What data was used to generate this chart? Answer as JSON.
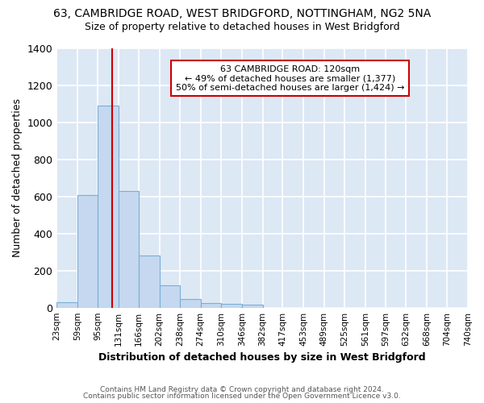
{
  "title1": "63, CAMBRIDGE ROAD, WEST BRIDGFORD, NOTTINGHAM, NG2 5NA",
  "title2": "Size of property relative to detached houses in West Bridgford",
  "xlabel": "Distribution of detached houses by size in West Bridgford",
  "ylabel": "Number of detached properties",
  "footnote1": "Contains HM Land Registry data © Crown copyright and database right 2024.",
  "footnote2": "Contains public sector information licensed under the Open Government Licence v3.0.",
  "bin_edges": [
    23,
    59,
    95,
    131,
    166,
    202,
    238,
    274,
    310,
    346,
    382,
    417,
    453,
    489,
    525,
    561,
    597,
    632,
    668,
    704,
    740
  ],
  "bar_heights": [
    30,
    610,
    1090,
    630,
    280,
    120,
    45,
    25,
    20,
    15,
    0,
    0,
    0,
    0,
    0,
    0,
    0,
    0,
    0,
    0
  ],
  "bar_color": "#c5d8f0",
  "bar_edge_color": "#7bafd4",
  "figure_bg": "#ffffff",
  "axes_bg": "#dde8f5",
  "grid_color": "#ffffff",
  "red_line_x": 120,
  "ylim": [
    0,
    1400
  ],
  "xlim_left": 23,
  "xlim_right": 740,
  "annotation_text": "63 CAMBRIDGE ROAD: 120sqm\n← 49% of detached houses are smaller (1,377)\n50% of semi-detached houses are larger (1,424) →",
  "annotation_box_color": "#ffffff",
  "annotation_box_edge_color": "#cc0000",
  "title1_fontsize": 10,
  "title2_fontsize": 9,
  "xlabel_fontsize": 9,
  "ylabel_fontsize": 9,
  "annotation_fontsize": 8,
  "footnote_fontsize": 6.5,
  "xtick_fontsize": 7.5,
  "ytick_fontsize": 9
}
